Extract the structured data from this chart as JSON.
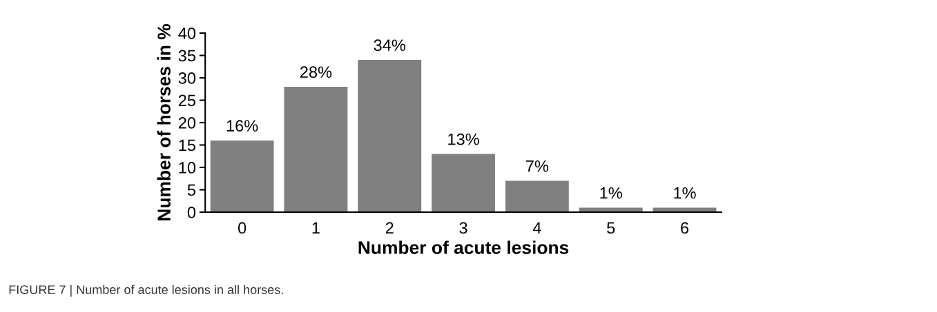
{
  "chart_data": {
    "type": "bar",
    "xlabel": "Number of acute lesions",
    "ylabel": "Number of horses in %",
    "categories": [
      "0",
      "1",
      "2",
      "3",
      "4",
      "5",
      "6"
    ],
    "values": [
      16,
      28,
      34,
      13,
      7,
      1,
      1
    ],
    "value_labels": [
      "16%",
      "28%",
      "34%",
      "13%",
      "7%",
      "1%",
      "1%"
    ],
    "color": "#808080",
    "ylim": [
      0,
      40
    ],
    "yticks": [
      0,
      5,
      10,
      15,
      20,
      25,
      30,
      35,
      40
    ],
    "grid": false,
    "legend": false,
    "annotations": [
      "FIGURE 7 | Number of acute lesions in all horses."
    ]
  }
}
